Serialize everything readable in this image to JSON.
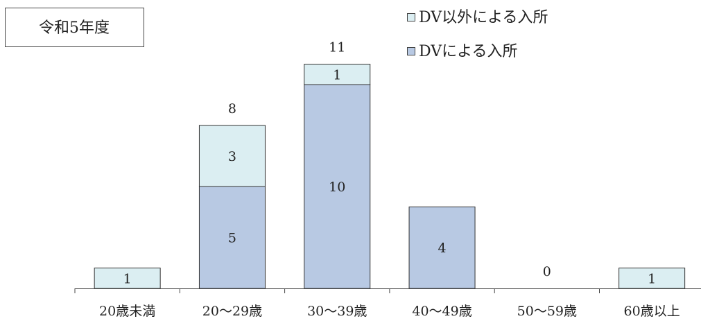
{
  "chart_data": {
    "type": "bar",
    "stacked": true,
    "title": "令和5年度",
    "categories": [
      "20歳未満",
      "20～29歳",
      "30～39歳",
      "40～49歳",
      "50～59歳",
      "60歳以上"
    ],
    "series": [
      {
        "name": "DVによる入所",
        "values": [
          0,
          5,
          10,
          4,
          0,
          0
        ],
        "color": "#b8c9e3"
      },
      {
        "name": "DV以外による入所",
        "values": [
          1,
          3,
          1,
          0,
          0,
          1
        ],
        "color": "#dbeef2"
      }
    ],
    "totals": [
      1,
      8,
      11,
      4,
      0,
      1
    ],
    "legend_position": "top-right",
    "grid": false,
    "ylim": [
      0,
      12
    ]
  }
}
